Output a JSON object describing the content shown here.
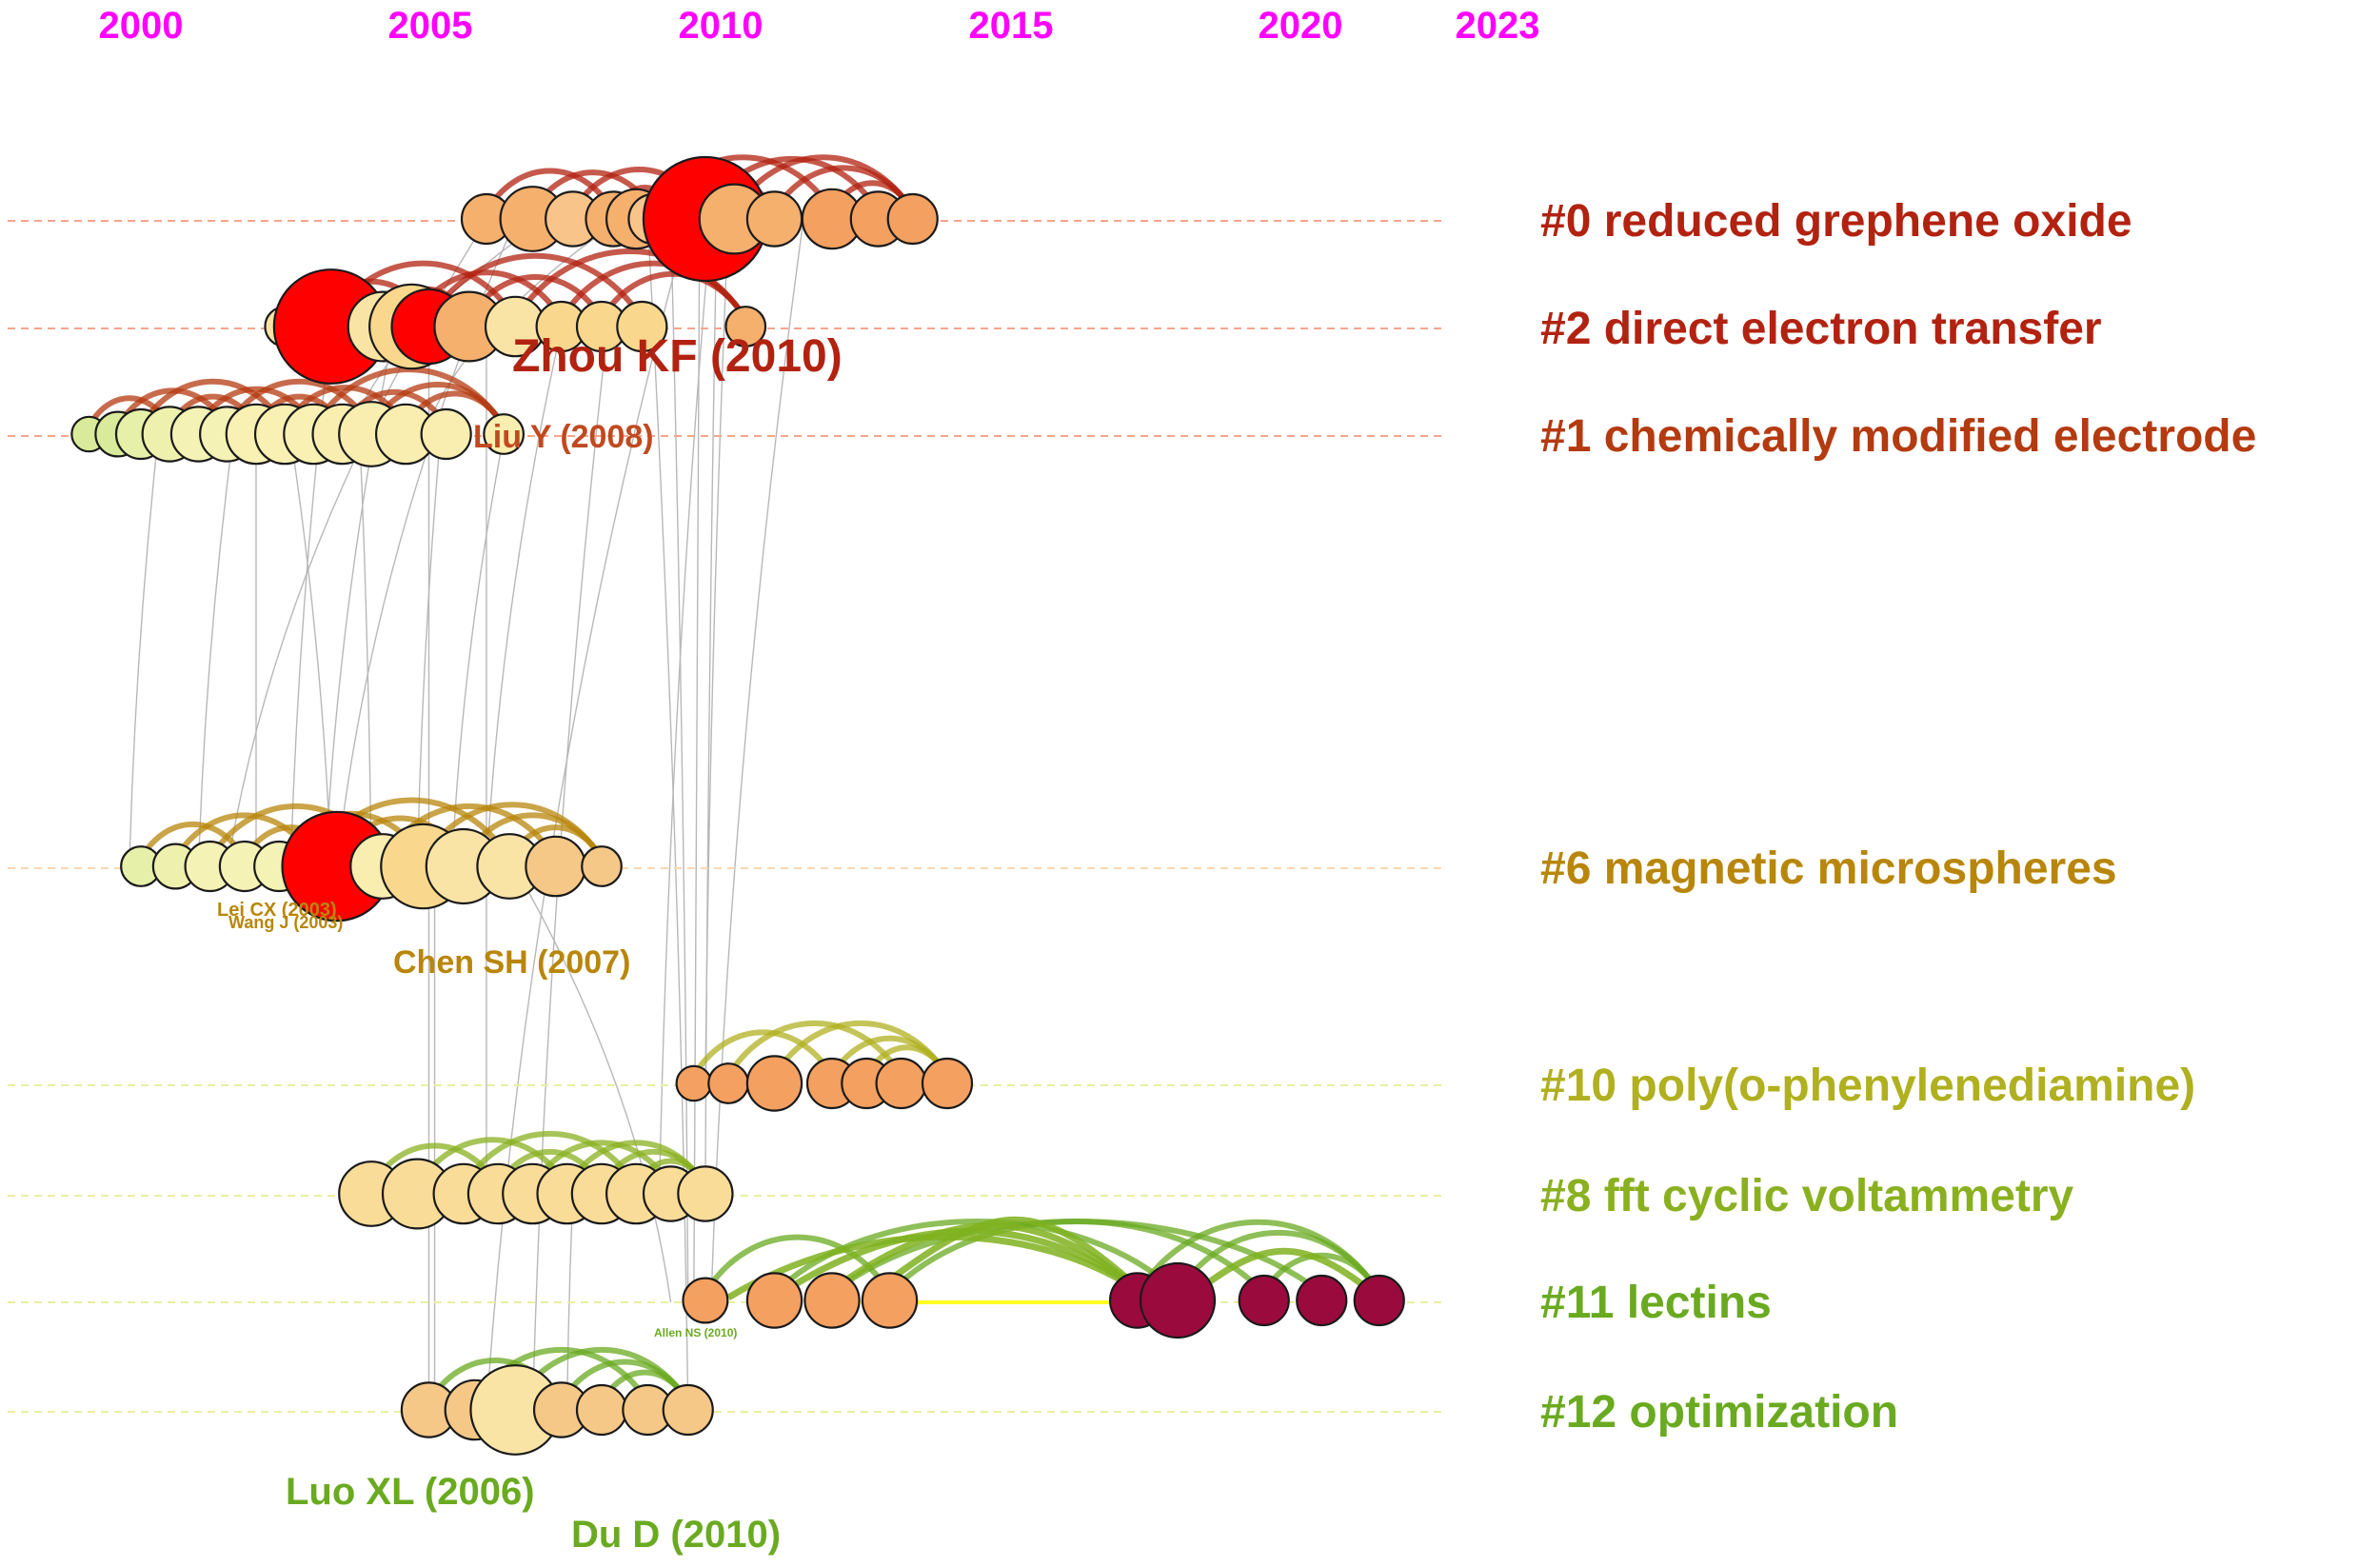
{
  "chart_data": {
    "type": "timeline",
    "x_axis": {
      "ticks": [
        "2000",
        "2005",
        "2010",
        "2015",
        "2020",
        "2023"
      ],
      "color": "#ff00ff"
    },
    "clusters": [
      {
        "id": "#0",
        "label": "#0 reduced grephene oxide",
        "color": "#b22210",
        "line_color": "#f4a58e",
        "nodes": [
          {
            "year": 2006.0,
            "size": 1.0,
            "color": "#f5b06e"
          },
          {
            "year": 2006.8,
            "size": 1.3,
            "color": "#f5b06e"
          },
          {
            "year": 2007.5,
            "size": 1.1,
            "color": "#f9c48a"
          },
          {
            "year": 2008.2,
            "size": 1.1,
            "color": "#f5b06e"
          },
          {
            "year": 2008.6,
            "size": 1.2,
            "color": "#f5b06e"
          },
          {
            "year": 2008.9,
            "size": 1.0,
            "color": "#f9c48a"
          },
          {
            "year": 2009.3,
            "size": 1.1,
            "color": "#f5b06e"
          },
          {
            "year": 2009.8,
            "size": 2.5,
            "color": "#ff0000"
          },
          {
            "year": 2010.3,
            "size": 1.4,
            "color": "#f5b06e"
          },
          {
            "year": 2011.0,
            "size": 1.1,
            "color": "#f5b06e"
          },
          {
            "year": 2012.0,
            "size": 1.2,
            "color": "#f4a060"
          },
          {
            "year": 2012.8,
            "size": 1.1,
            "color": "#f4a060"
          },
          {
            "year": 2013.4,
            "size": 1.0,
            "color": "#f4a060"
          }
        ]
      },
      {
        "id": "#2",
        "label": "#2 direct electron transfer",
        "color": "#b22210",
        "line_color": "#f4a58e",
        "nodes": [
          {
            "year": 2002.5,
            "size": 0.8,
            "color": "#f9e4a6"
          },
          {
            "year": 2003.0,
            "size": 1.0,
            "color": "#f9e4a6"
          },
          {
            "year": 2003.3,
            "size": 2.3,
            "color": "#ff0000"
          },
          {
            "year": 2004.2,
            "size": 1.4,
            "color": "#f9e4a6"
          },
          {
            "year": 2004.7,
            "size": 1.7,
            "color": "#f9d88e"
          },
          {
            "year": 2005.0,
            "size": 1.5,
            "color": "#ff0000"
          },
          {
            "year": 2005.7,
            "size": 1.4,
            "color": "#f5b06e"
          },
          {
            "year": 2006.5,
            "size": 1.2,
            "color": "#f9e4a6"
          },
          {
            "year": 2007.3,
            "size": 1.0,
            "color": "#f9d88e"
          },
          {
            "year": 2008.0,
            "size": 1.0,
            "color": "#f9d88e"
          },
          {
            "year": 2008.7,
            "size": 1.0,
            "color": "#f9d88e"
          },
          {
            "year": 2010.5,
            "size": 0.8,
            "color": "#f5b06e"
          }
        ]
      },
      {
        "id": "#1",
        "label": "#1 chemically modified electrode",
        "color": "#b43a10",
        "line_color": "#f4a58e",
        "nodes": [
          {
            "year": 1999.1,
            "size": 0.7,
            "color": "#d9ea9a"
          },
          {
            "year": 1999.6,
            "size": 0.9,
            "color": "#d9ea9a"
          },
          {
            "year": 2000.0,
            "size": 1.0,
            "color": "#e6f0a8"
          },
          {
            "year": 2000.5,
            "size": 1.1,
            "color": "#eef0ae"
          },
          {
            "year": 2001.0,
            "size": 1.1,
            "color": "#f4f2b4"
          },
          {
            "year": 2001.5,
            "size": 1.1,
            "color": "#f4f2b4"
          },
          {
            "year": 2002.0,
            "size": 1.2,
            "color": "#f9f0b4"
          },
          {
            "year": 2002.5,
            "size": 1.2,
            "color": "#f9f0b4"
          },
          {
            "year": 2003.0,
            "size": 1.2,
            "color": "#f9f0b4"
          },
          {
            "year": 2003.5,
            "size": 1.2,
            "color": "#f9eeb0"
          },
          {
            "year": 2004.0,
            "size": 1.3,
            "color": "#f9eeb0"
          },
          {
            "year": 2004.6,
            "size": 1.2,
            "color": "#f9eeb0"
          },
          {
            "year": 2005.3,
            "size": 1.0,
            "color": "#f9eeb0"
          },
          {
            "year": 2006.3,
            "size": 0.8,
            "color": "#f9eeb0"
          }
        ]
      },
      {
        "id": "#6",
        "label": "#6 magnetic microspheres",
        "color": "#b8860b",
        "line_color": "#f9d8b0",
        "nodes": [
          {
            "year": 2000.0,
            "size": 0.8,
            "color": "#e6f0a8"
          },
          {
            "year": 2000.6,
            "size": 0.9,
            "color": "#eef0ae"
          },
          {
            "year": 2001.2,
            "size": 1.0,
            "color": "#f4f2b4"
          },
          {
            "year": 2001.8,
            "size": 1.0,
            "color": "#f4f2b4"
          },
          {
            "year": 2002.4,
            "size": 1.0,
            "color": "#f4f2b4"
          },
          {
            "year": 2003.0,
            "size": 0.9,
            "color": "#e6f0a8"
          },
          {
            "year": 2003.4,
            "size": 2.2,
            "color": "#ff0000"
          },
          {
            "year": 2004.2,
            "size": 1.3,
            "color": "#f9eeb0"
          },
          {
            "year": 2004.9,
            "size": 1.7,
            "color": "#f9d88e"
          },
          {
            "year": 2005.6,
            "size": 1.5,
            "color": "#f9e4a6"
          },
          {
            "year": 2006.4,
            "size": 1.3,
            "color": "#f9e4a6"
          },
          {
            "year": 2007.2,
            "size": 1.2,
            "color": "#f5c888"
          },
          {
            "year": 2008.0,
            "size": 0.8,
            "color": "#f5c888"
          }
        ]
      },
      {
        "id": "#10",
        "label": "#10 poly(o-phenylenediamine)",
        "color": "#b0b020",
        "line_color": "#e8f0a0",
        "nodes": [
          {
            "year": 2009.6,
            "size": 0.7,
            "color": "#f4a060"
          },
          {
            "year": 2010.2,
            "size": 0.8,
            "color": "#f4a060"
          },
          {
            "year": 2011.0,
            "size": 1.1,
            "color": "#f4a060"
          },
          {
            "year": 2012.0,
            "size": 1.0,
            "color": "#f4a060"
          },
          {
            "year": 2012.6,
            "size": 1.0,
            "color": "#f4a060"
          },
          {
            "year": 2013.2,
            "size": 1.0,
            "color": "#f4a060"
          },
          {
            "year": 2014.0,
            "size": 1.0,
            "color": "#f4a060"
          }
        ]
      },
      {
        "id": "#8",
        "label": "#8 fft cyclic voltammetry",
        "color": "#8ab020",
        "line_color": "#e8f0a0",
        "nodes": [
          {
            "year": 2004.0,
            "size": 1.3,
            "color": "#f9dc98"
          },
          {
            "year": 2004.8,
            "size": 1.4,
            "color": "#f9dc98"
          },
          {
            "year": 2005.6,
            "size": 1.2,
            "color": "#f9dc98"
          },
          {
            "year": 2006.2,
            "size": 1.2,
            "color": "#f9dc98"
          },
          {
            "year": 2006.8,
            "size": 1.2,
            "color": "#f9dc98"
          },
          {
            "year": 2007.4,
            "size": 1.2,
            "color": "#f9dc98"
          },
          {
            "year": 2008.0,
            "size": 1.2,
            "color": "#f9dc98"
          },
          {
            "year": 2008.6,
            "size": 1.2,
            "color": "#f9dc98"
          },
          {
            "year": 2009.2,
            "size": 1.1,
            "color": "#f9dc98"
          },
          {
            "year": 2009.8,
            "size": 1.1,
            "color": "#f9dc98"
          }
        ]
      },
      {
        "id": "#11",
        "label": "#11 lectins",
        "color": "#6aaa20",
        "line_color": "#e8f0a0",
        "nodes": [
          {
            "year": 2009.8,
            "size": 0.9,
            "color": "#f4a060"
          },
          {
            "year": 2011.0,
            "size": 1.1,
            "color": "#f4a060"
          },
          {
            "year": 2012.0,
            "size": 1.1,
            "color": "#f4a060"
          },
          {
            "year": 2013.0,
            "size": 1.1,
            "color": "#f4a060"
          },
          {
            "year": 2017.3,
            "size": 1.1,
            "color": "#9b0a3c"
          },
          {
            "year": 2018.0,
            "size": 1.5,
            "color": "#9b0a3c"
          },
          {
            "year": 2019.5,
            "size": 1.0,
            "color": "#9b0a3c"
          },
          {
            "year": 2020.5,
            "size": 1.0,
            "color": "#9b0a3c"
          },
          {
            "year": 2021.5,
            "size": 1.0,
            "color": "#9b0a3c"
          }
        ]
      },
      {
        "id": "#12",
        "label": "#12 optimization",
        "color": "#6aaa20",
        "line_color": "#e8f0a0",
        "nodes": [
          {
            "year": 2005.0,
            "size": 1.1,
            "color": "#f5c888"
          },
          {
            "year": 2005.8,
            "size": 1.2,
            "color": "#f5c888"
          },
          {
            "year": 2006.5,
            "size": 1.8,
            "color": "#f9e4a6"
          },
          {
            "year": 2007.3,
            "size": 1.1,
            "color": "#f5c888"
          },
          {
            "year": 2008.0,
            "size": 1.0,
            "color": "#f5c888"
          },
          {
            "year": 2008.8,
            "size": 1.0,
            "color": "#f5c888"
          },
          {
            "year": 2009.5,
            "size": 1.0,
            "color": "#f5c888"
          }
        ]
      }
    ],
    "annotations": [
      {
        "text": "Zhou KF (2010)",
        "color": "#b22210",
        "size": "large"
      },
      {
        "text": "Liu Y (2008)",
        "color": "#c04a20",
        "size": "medium"
      },
      {
        "text": "Lei CX (2003)",
        "color": "#b8860b",
        "size": "small"
      },
      {
        "text": "Wang J (2003)",
        "color": "#b8860b",
        "size": "small"
      },
      {
        "text": "Chen SH (2007)",
        "color": "#b8860b",
        "size": "medium"
      },
      {
        "text": "Allen NS (2010)",
        "color": "#6aaa20",
        "size": "tiny"
      },
      {
        "text": "Luo XL (2006)",
        "color": "#6aaa20",
        "size": "medium"
      },
      {
        "text": "Du D (2010)",
        "color": "#6aaa20",
        "size": "medium"
      }
    ]
  }
}
